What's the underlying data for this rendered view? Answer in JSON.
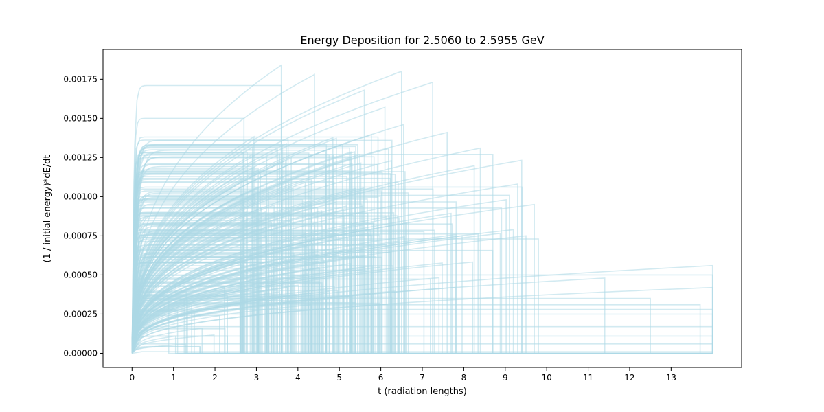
{
  "chart_data": {
    "type": "line",
    "title": "Energy Deposition for 2.5060 to 2.5955 GeV",
    "xlabel": "t (radiation lengths)",
    "ylabel": "(1 / initial energy)*dE/dt",
    "xlim": [
      -0.7,
      14.7
    ],
    "ylim": [
      -9e-05,
      0.00194
    ],
    "xticks": [
      "0",
      "1",
      "2",
      "3",
      "4",
      "5",
      "6",
      "7",
      "8",
      "9",
      "10",
      "11",
      "12",
      "13"
    ],
    "yticks": [
      "0.00000",
      "0.00025",
      "0.00050",
      "0.00075",
      "0.00100",
      "0.00125",
      "0.00150",
      "0.00175"
    ],
    "grid": false,
    "line_color": "#add8e6",
    "series_note_count": 260,
    "series": [
      {
        "cutoff": 3.6,
        "plateau": 0.00184,
        "shape": "rise"
      },
      {
        "cutoff": 6.5,
        "plateau": 0.0018,
        "shape": "rise"
      },
      {
        "cutoff": 4.4,
        "plateau": 0.00178,
        "shape": "rise"
      },
      {
        "cutoff": 7.25,
        "plateau": 0.00173,
        "shape": "rise"
      },
      {
        "cutoff": 3.6,
        "plateau": 0.00171,
        "shape": "flat"
      },
      {
        "cutoff": 5.6,
        "plateau": 0.00168,
        "shape": "rise"
      },
      {
        "cutoff": 6.1,
        "plateau": 0.00157,
        "shape": "rise"
      },
      {
        "cutoff": 2.7,
        "plateau": 0.0015,
        "shape": "flat"
      },
      {
        "cutoff": 6.55,
        "plateau": 0.00146,
        "shape": "rise"
      },
      {
        "cutoff": 7.6,
        "plateau": 0.00141,
        "shape": "rise"
      },
      {
        "cutoff": 8.4,
        "plateau": 0.00131,
        "shape": "rise"
      },
      {
        "cutoff": 8.7,
        "plateau": 0.00127,
        "shape": "flat"
      },
      {
        "cutoff": 9.3,
        "plateau": 0.00108,
        "shape": "rise"
      },
      {
        "cutoff": 9.7,
        "plateau": 0.00095,
        "shape": "rise"
      },
      {
        "cutoff": 9.8,
        "plateau": 0.00073,
        "shape": "flat"
      },
      {
        "cutoff": 9.5,
        "plateau": 0.00075,
        "shape": "rise"
      },
      {
        "cutoff": 11.4,
        "plateau": 0.00048,
        "shape": "rise"
      },
      {
        "cutoff": 12.5,
        "plateau": 0.00035,
        "shape": "flat"
      },
      {
        "cutoff": 13.7,
        "plateau": 0.00031,
        "shape": "flat"
      },
      {
        "cutoff": 14.0,
        "plateau": 0.00056,
        "shape": "rise"
      },
      {
        "cutoff": 14.0,
        "plateau": 0.0005,
        "shape": "flat"
      },
      {
        "cutoff": 14.0,
        "plateau": 0.00042,
        "shape": "rise"
      },
      {
        "cutoff": 14.0,
        "plateau": 0.00028,
        "shape": "flat"
      },
      {
        "cutoff": 14.0,
        "plateau": 0.00025,
        "shape": "flat"
      },
      {
        "cutoff": 14.0,
        "plateau": 0.00017,
        "shape": "flat"
      },
      {
        "cutoff": 14.0,
        "plateau": 0.00011,
        "shape": "flat"
      },
      {
        "cutoff": 14.0,
        "plateau": 6e-05,
        "shape": "flat"
      },
      {
        "cutoff": 14.0,
        "plateau": 1e-05,
        "shape": "flat"
      },
      {
        "cutoff": 2.3,
        "plateau": 0.00037,
        "shape": "flat"
      },
      {
        "cutoff": 1.05,
        "plateau": 0.00011,
        "shape": "rise"
      },
      {
        "cutoff": 1.5,
        "plateau": 0.00027,
        "shape": "flat"
      },
      {
        "cutoff": 2.3,
        "plateau": 0.00011,
        "shape": "flat"
      }
    ]
  }
}
